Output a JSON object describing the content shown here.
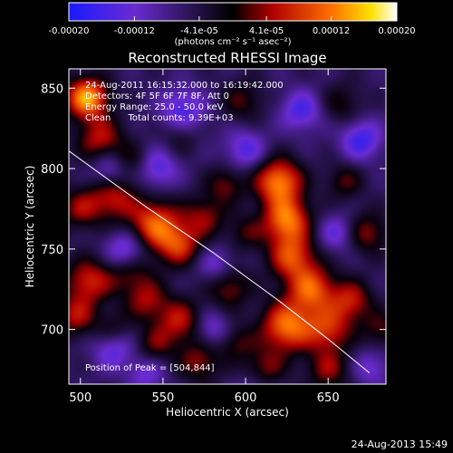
{
  "chart_data": {
    "type": "heatmap",
    "title": "Reconstructed RHESSI Image",
    "xlabel": "Heliocentric X (arcsec)",
    "ylabel": "Heliocentric Y (arcsec)",
    "xlim": [
      493,
      685
    ],
    "ylim": [
      666,
      862
    ],
    "xticks": [
      500,
      550,
      600,
      650
    ],
    "yticks": [
      700,
      750,
      800,
      850
    ],
    "grid": false,
    "colorbar": {
      "ticks": [
        "-0.00020",
        "-0.00012",
        "-4.1e-05",
        "4.1e-05",
        "0.00012",
        "0.00020"
      ],
      "values": [
        -0.0002,
        -0.00012,
        -4.1e-05,
        4.1e-05,
        0.00012,
        0.0002
      ],
      "range": [
        -0.0002,
        0.0002
      ],
      "unit_label": "(photons cm⁻² s⁻¹ asec⁻²)"
    },
    "annotations": [
      "24-Aug-2011 16:15:32.000 to 16:19:42.000",
      "Detectors: 4F 5F 6F 7F 8F, Att 0",
      "Energy Range: 25.0 - 50.0 keV",
      "Clean      Total counts: 9.39E+03"
    ],
    "peak_label": "Position of Peak = [504,844]",
    "peak_position": [
      504,
      844
    ],
    "limb_curve": [
      [
        493,
        811
      ],
      [
        540,
        776
      ],
      [
        580,
        748
      ],
      [
        620,
        718
      ],
      [
        650,
        694
      ],
      [
        675,
        673
      ]
    ],
    "blobs": [
      {
        "x": 504,
        "y": 844,
        "amp": 1.0,
        "s": 9
      },
      {
        "x": 512,
        "y": 818,
        "amp": 0.55,
        "s": 10
      },
      {
        "x": 500,
        "y": 775,
        "amp": 0.45,
        "s": 9
      },
      {
        "x": 520,
        "y": 782,
        "amp": 0.55,
        "s": 10
      },
      {
        "x": 545,
        "y": 765,
        "amp": 0.8,
        "s": 11
      },
      {
        "x": 560,
        "y": 752,
        "amp": 0.6,
        "s": 9
      },
      {
        "x": 530,
        "y": 738,
        "amp": 0.5,
        "s": 10
      },
      {
        "x": 505,
        "y": 730,
        "amp": 0.6,
        "s": 10
      },
      {
        "x": 497,
        "y": 708,
        "amp": 0.5,
        "s": 9
      },
      {
        "x": 540,
        "y": 718,
        "amp": 0.45,
        "s": 9
      },
      {
        "x": 560,
        "y": 705,
        "amp": 0.55,
        "s": 10
      },
      {
        "x": 590,
        "y": 726,
        "amp": 0.45,
        "s": 9
      },
      {
        "x": 575,
        "y": 770,
        "amp": 0.45,
        "s": 9
      },
      {
        "x": 588,
        "y": 790,
        "amp": 0.4,
        "s": 8
      },
      {
        "x": 620,
        "y": 792,
        "amp": 0.9,
        "s": 10
      },
      {
        "x": 625,
        "y": 768,
        "amp": 0.85,
        "s": 10
      },
      {
        "x": 628,
        "y": 745,
        "amp": 0.7,
        "s": 10
      },
      {
        "x": 640,
        "y": 725,
        "amp": 0.75,
        "s": 10
      },
      {
        "x": 625,
        "y": 702,
        "amp": 0.85,
        "s": 11
      },
      {
        "x": 650,
        "y": 700,
        "amp": 0.6,
        "s": 10
      },
      {
        "x": 664,
        "y": 718,
        "amp": 0.55,
        "s": 9
      },
      {
        "x": 674,
        "y": 760,
        "amp": 0.45,
        "s": 9
      },
      {
        "x": 660,
        "y": 792,
        "amp": 0.35,
        "s": 8
      },
      {
        "x": 572,
        "y": 680,
        "amp": 0.45,
        "s": 9
      },
      {
        "x": 612,
        "y": 676,
        "amp": 0.4,
        "s": 9
      },
      {
        "x": 650,
        "y": 675,
        "amp": 0.45,
        "s": 9
      },
      {
        "x": 594,
        "y": 692,
        "amp": 0.35,
        "s": 8
      },
      {
        "x": 545,
        "y": 690,
        "amp": 0.35,
        "s": 8
      },
      {
        "x": 598,
        "y": 842,
        "amp": 0.35,
        "s": 9
      },
      {
        "x": 560,
        "y": 820,
        "amp": 0.25,
        "s": 8
      },
      {
        "x": 658,
        "y": 840,
        "amp": 0.3,
        "s": 9
      },
      {
        "x": 600,
        "y": 760,
        "amp": 0.3,
        "s": 8
      },
      {
        "x": 520,
        "y": 700,
        "amp": 0.3,
        "s": 8
      },
      {
        "x": 530,
        "y": 805,
        "amp": 0.3,
        "s": 8
      },
      {
        "x": 682,
        "y": 700,
        "amp": 0.35,
        "s": 8
      },
      {
        "x": 528,
        "y": 748,
        "amp": -0.7,
        "s": 9
      },
      {
        "x": 518,
        "y": 800,
        "amp": -0.45,
        "s": 8
      },
      {
        "x": 547,
        "y": 800,
        "amp": -0.45,
        "s": 9
      },
      {
        "x": 562,
        "y": 836,
        "amp": -0.5,
        "s": 10
      },
      {
        "x": 600,
        "y": 812,
        "amp": -0.45,
        "s": 9
      },
      {
        "x": 634,
        "y": 836,
        "amp": -0.5,
        "s": 9
      },
      {
        "x": 670,
        "y": 818,
        "amp": -0.55,
        "s": 9
      },
      {
        "x": 655,
        "y": 760,
        "amp": -0.4,
        "s": 8
      },
      {
        "x": 582,
        "y": 740,
        "amp": -0.35,
        "s": 8
      },
      {
        "x": 580,
        "y": 700,
        "amp": -0.4,
        "s": 8
      },
      {
        "x": 520,
        "y": 688,
        "amp": -0.45,
        "s": 9
      },
      {
        "x": 540,
        "y": 672,
        "amp": -0.35,
        "s": 8
      },
      {
        "x": 676,
        "y": 676,
        "amp": -0.35,
        "s": 8
      },
      {
        "x": 605,
        "y": 660,
        "amp": -0.3,
        "s": 8
      }
    ]
  },
  "footer": {
    "date": "24-Aug-2013 15:49"
  }
}
